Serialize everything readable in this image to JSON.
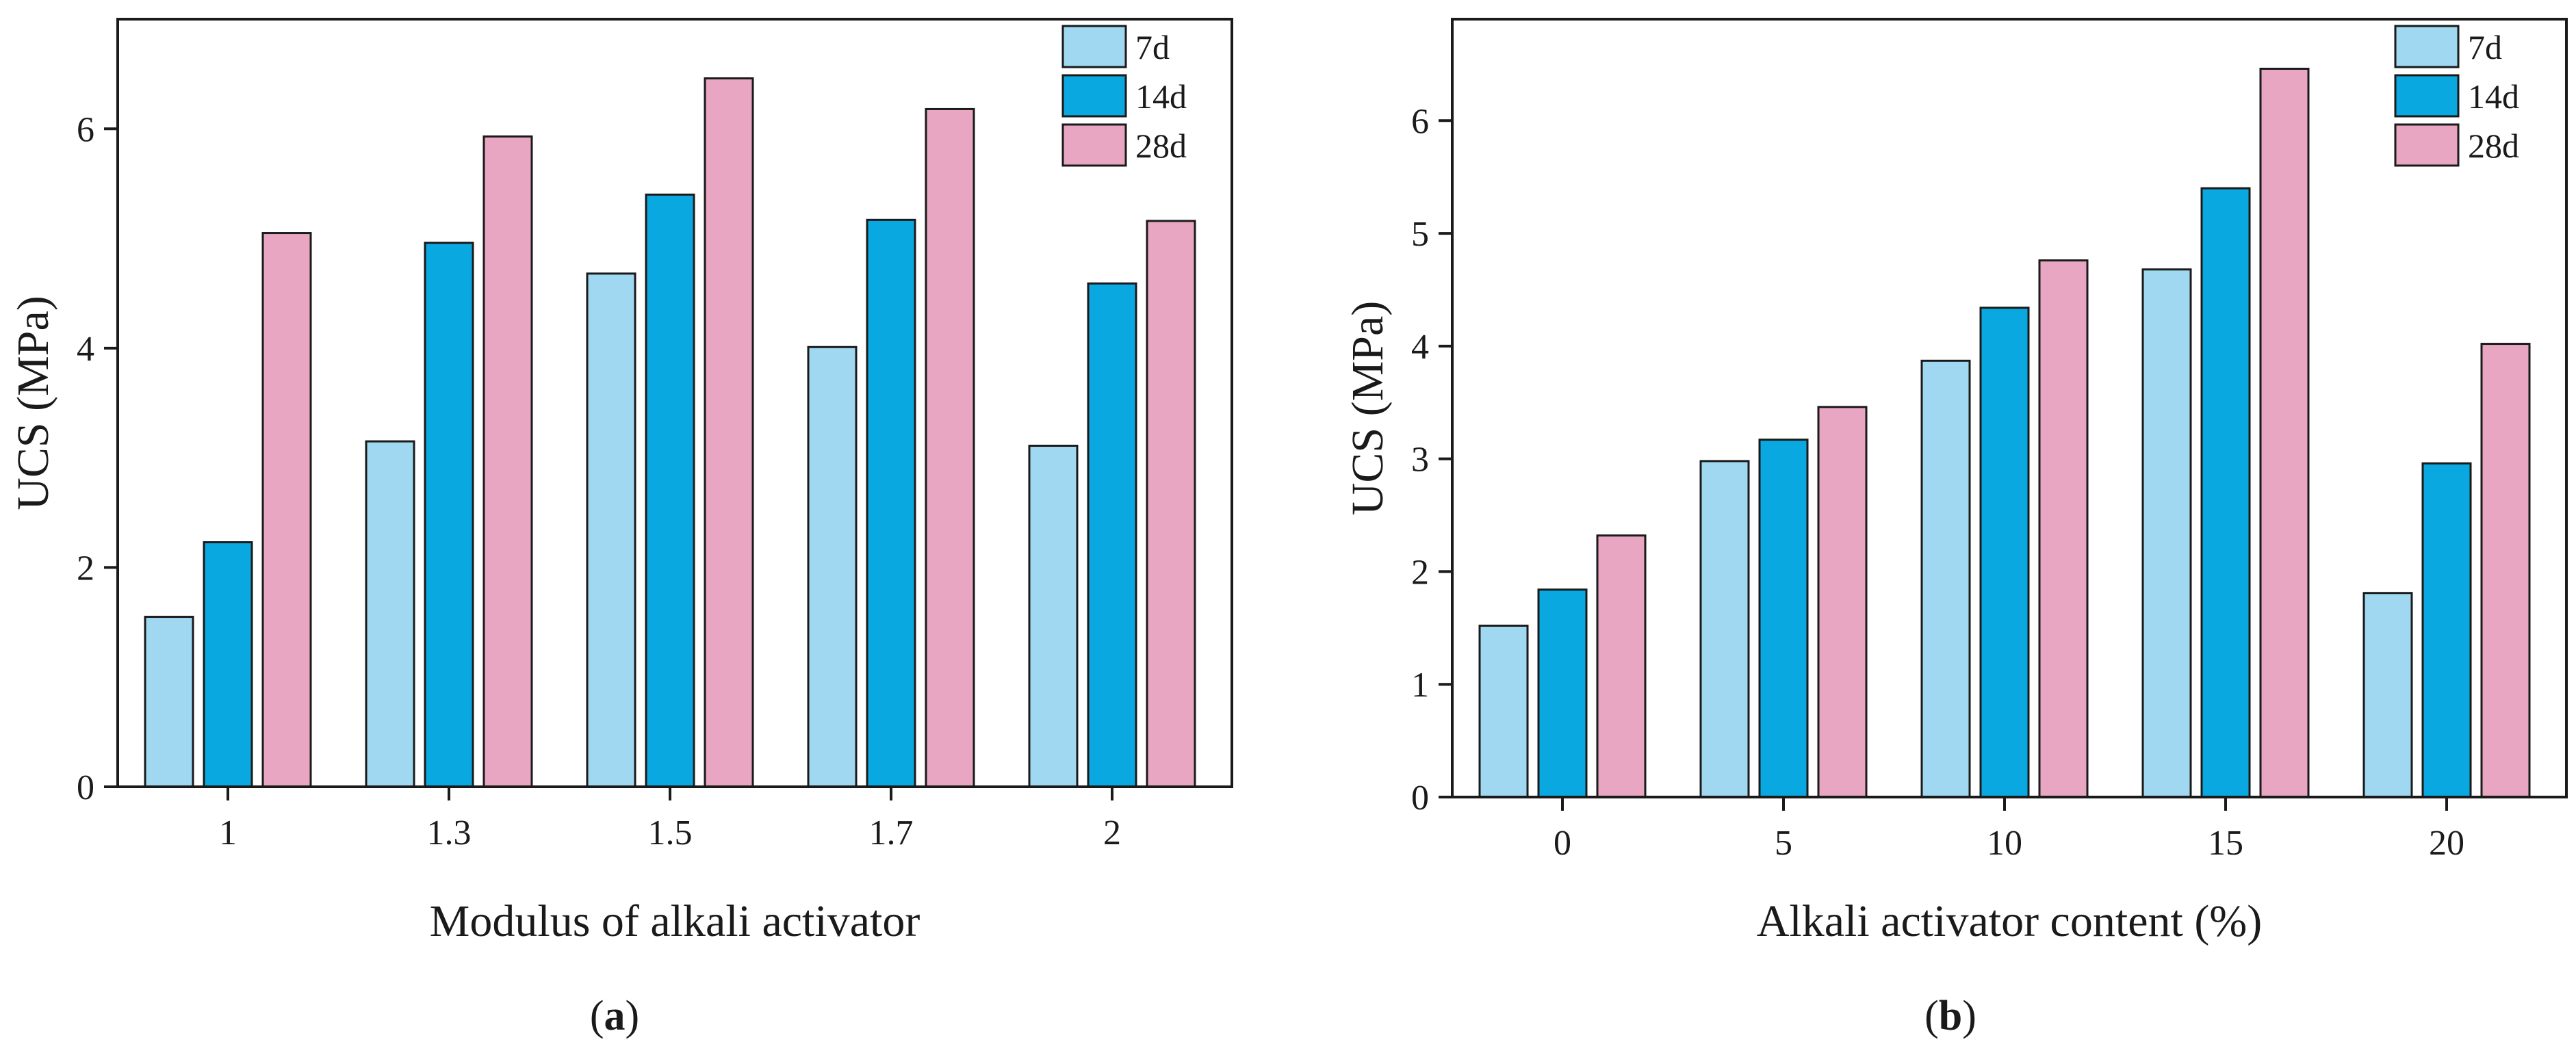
{
  "chart_data": [
    {
      "type": "bar",
      "panel": "a",
      "categories": [
        "1",
        "1.3",
        "1.5",
        "1.7",
        "2"
      ],
      "series": [
        {
          "name": "7d",
          "color": "#9fd8f0",
          "values": [
            1.55,
            3.15,
            4.68,
            4.01,
            3.11
          ]
        },
        {
          "name": "14d",
          "color": "#0aa8e0",
          "values": [
            2.23,
            4.96,
            5.4,
            5.17,
            4.59
          ]
        },
        {
          "name": "28d",
          "color": "#e8a6c2",
          "values": [
            5.05,
            5.93,
            6.46,
            6.18,
            5.16
          ]
        }
      ],
      "xlabel": "Modulus of alkali activator",
      "ylabel": "UCS (MPa)",
      "ylim": [
        0,
        7
      ],
      "yticks": [
        0,
        2,
        4,
        6
      ],
      "legend_position": "top-right",
      "grid": false
    },
    {
      "type": "bar",
      "panel": "b",
      "categories": [
        "0",
        "5",
        "10",
        "15",
        "20"
      ],
      "series": [
        {
          "name": "7d",
          "color": "#9fd8f0",
          "values": [
            1.52,
            2.98,
            3.87,
            4.68,
            1.81
          ]
        },
        {
          "name": "14d",
          "color": "#0aa8e0",
          "values": [
            1.84,
            3.17,
            4.34,
            5.4,
            2.96
          ]
        },
        {
          "name": "28d",
          "color": "#e8a6c2",
          "values": [
            2.32,
            3.46,
            4.76,
            6.46,
            4.02
          ]
        }
      ],
      "xlabel": "Alkali activator content (%)",
      "ylabel": "UCS (MPa)",
      "ylim": [
        0,
        6.9
      ],
      "yticks": [
        0,
        1,
        2,
        3,
        4,
        5,
        6
      ],
      "legend_position": "top-right",
      "grid": false
    }
  ],
  "panel_labels": [
    {
      "open": "(",
      "letter": "a",
      "close": ")"
    },
    {
      "open": "(",
      "letter": "b",
      "close": ")"
    }
  ]
}
